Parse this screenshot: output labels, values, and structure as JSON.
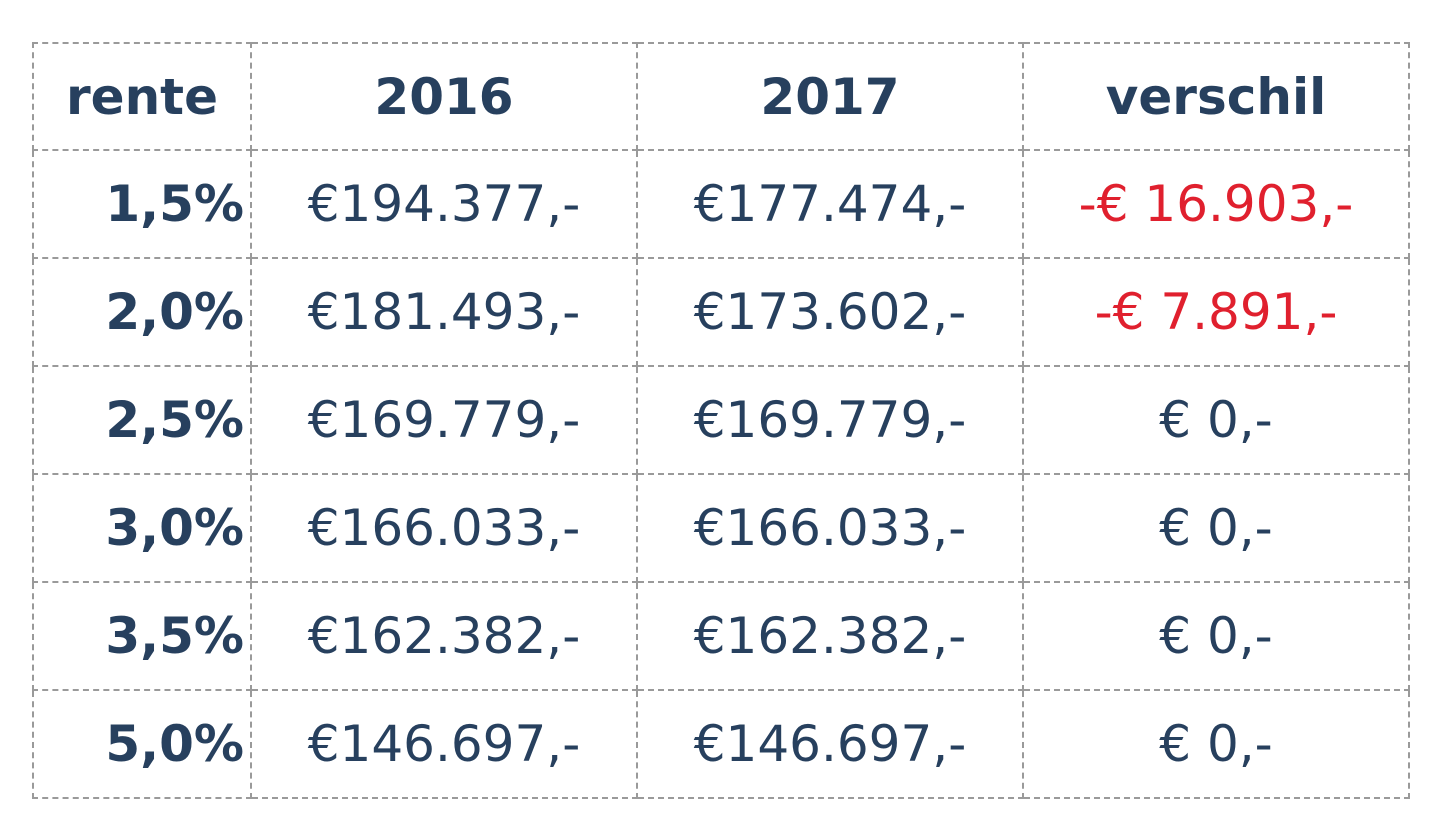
{
  "table": {
    "header": [
      "rente",
      "2016",
      "2017",
      "verschil"
    ],
    "rows": [
      [
        "1,5%",
        "€194.377,-",
        "€177.474,-",
        "-€ 16.903,-"
      ],
      [
        "2,0%",
        "€181.493,-",
        "€173.602,-",
        "-€ 7.891,-"
      ],
      [
        "2,5%",
        "€169.779,-",
        "€169.779,-",
        "€ 0,-"
      ],
      [
        "3,0%",
        "€166.033,-",
        "€166.033,-",
        "€ 0,-"
      ],
      [
        "3,5%",
        "€162.382,-",
        "€162.382,-",
        "€ 0,-"
      ],
      [
        "5,0%",
        "€146.697,-",
        "€146.697,-",
        "€ 0,-"
      ]
    ],
    "negative_color": "#e0202e"
  }
}
